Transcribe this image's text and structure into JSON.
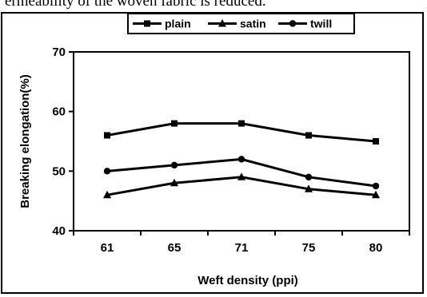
{
  "page": {
    "text_above": "ermeability of the woven fabric is reduced."
  },
  "chart_data": {
    "type": "line",
    "title": "",
    "xlabel": "Weft density (ppi)",
    "ylabel": "Breaking elongation(%)",
    "categories": [
      "61",
      "65",
      "71",
      "75",
      "80"
    ],
    "ylim": [
      40,
      70
    ],
    "yticks": [
      40,
      50,
      60,
      70
    ],
    "grid": false,
    "legend_position": "top",
    "series": [
      {
        "name": "plain",
        "marker": "square",
        "values": [
          56,
          58,
          58,
          56,
          55
        ]
      },
      {
        "name": "satin",
        "marker": "triangle",
        "values": [
          46,
          48,
          49,
          47,
          46
        ]
      },
      {
        "name": "twill",
        "marker": "circle",
        "values": [
          50,
          51,
          52,
          49,
          47.5
        ]
      }
    ]
  }
}
